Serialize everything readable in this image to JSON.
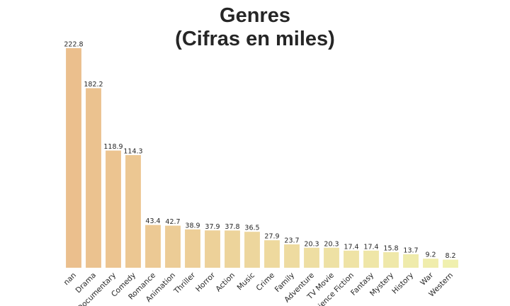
{
  "chart_data": {
    "type": "bar",
    "title_lines": [
      "Genres",
      "(Cifras en miles)"
    ],
    "xlabel": "",
    "ylabel": "",
    "grid": false,
    "categories": [
      "nan",
      "Drama",
      "Documentary",
      "Comedy",
      "Romance",
      "Animation",
      "Thriller",
      "Horror",
      "Action",
      "Music",
      "Crime",
      "Family",
      "Adventure",
      "TV Movie",
      "Science Fiction",
      "Fantasy",
      "Mystery",
      "History",
      "War",
      "Western"
    ],
    "values": [
      222.8,
      182.2,
      118.9,
      114.3,
      43.4,
      42.7,
      38.9,
      37.9,
      37.8,
      36.5,
      27.9,
      23.7,
      20.3,
      20.3,
      17.4,
      17.4,
      15.8,
      13.7,
      9.2,
      8.2
    ],
    "value_labels": [
      "222.8",
      "182.2",
      "118.9",
      "114.3",
      "43.4",
      "42.7",
      "38.9",
      "37.9",
      "37.8",
      "36.5",
      "27.9",
      "23.7",
      "20.3",
      "20.3",
      "17.4",
      "17.4",
      "15.8",
      "13.7",
      "9.2",
      "8.2"
    ],
    "ylim": [
      0,
      222.8
    ],
    "colors": {
      "start": "#ebbf8d",
      "end": "#f0f0ae",
      "text": "#262626"
    }
  }
}
